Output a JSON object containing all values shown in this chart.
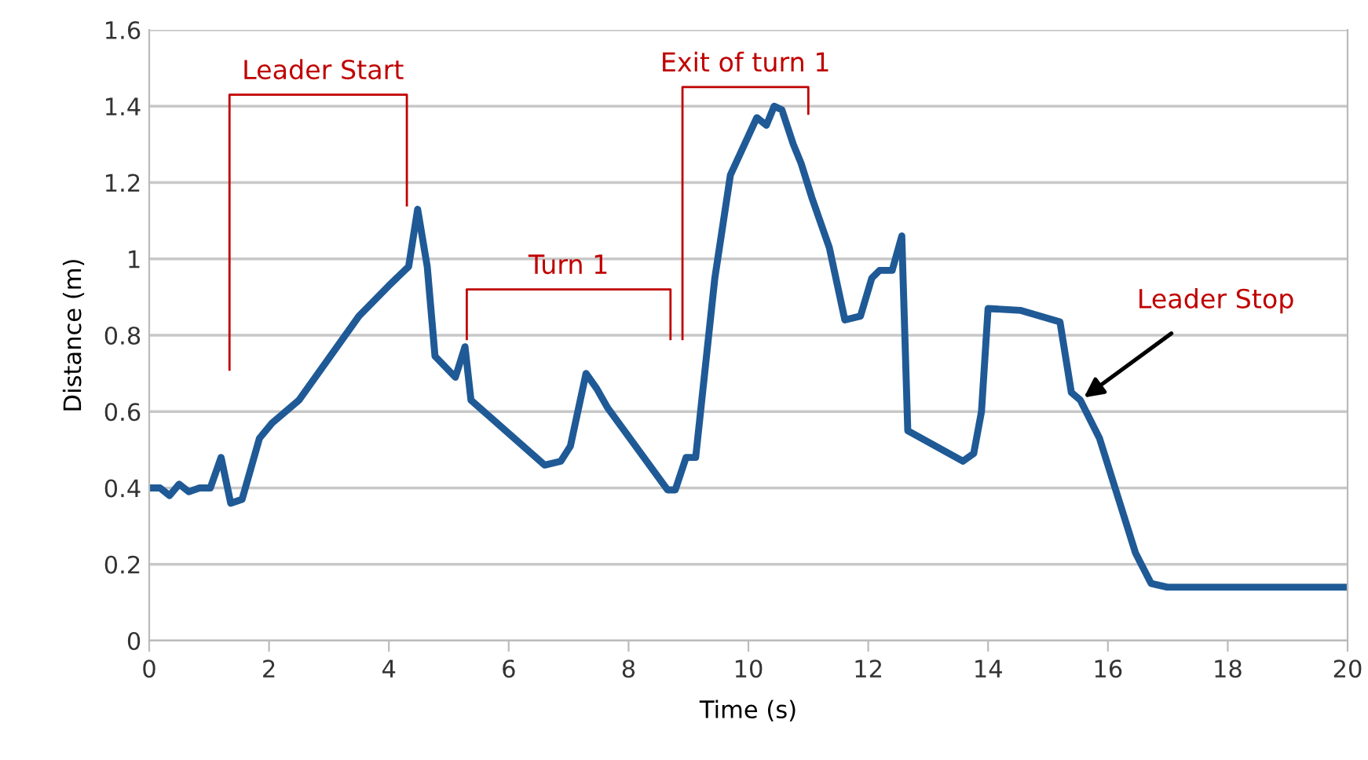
{
  "chart_data": {
    "type": "line",
    "xlabel": "Time (s)",
    "ylabel": "Distance (m)",
    "x": [
      0,
      0.18,
      0.34,
      0.5,
      0.66,
      0.84,
      1.02,
      1.2,
      1.36,
      1.55,
      1.84,
      2.05,
      2.5,
      3.0,
      3.5,
      4.0,
      4.33,
      4.48,
      4.64,
      4.77,
      5.11,
      5.27,
      5.37,
      6.6,
      6.87,
      7.03,
      7.29,
      7.47,
      7.65,
      8.65,
      8.78,
      8.96,
      9.12,
      9.44,
      9.7,
      10.14,
      10.3,
      10.43,
      10.56,
      10.75,
      10.88,
      11.06,
      11.35,
      11.61,
      11.87,
      12.06,
      12.19,
      12.4,
      12.56,
      12.66,
      13.58,
      13.76,
      13.89,
      14.0,
      14.55,
      15.2,
      15.39,
      15.54,
      15.86,
      16.12,
      16.46,
      16.72,
      16.99,
      20
    ],
    "series": [
      {
        "color": "#1f5a96",
        "values": [
          0.4,
          0.4,
          0.38,
          0.41,
          0.39,
          0.4,
          0.4,
          0.48,
          0.36,
          0.37,
          0.53,
          0.57,
          0.63,
          0.74,
          0.85,
          0.93,
          0.98,
          1.13,
          0.98,
          0.745,
          0.69,
          0.77,
          0.63,
          0.46,
          0.47,
          0.51,
          0.7,
          0.66,
          0.61,
          0.395,
          0.395,
          0.48,
          0.48,
          0.95,
          1.22,
          1.37,
          1.35,
          1.4,
          1.39,
          1.3,
          1.25,
          1.16,
          1.03,
          0.84,
          0.85,
          0.95,
          0.97,
          0.97,
          1.06,
          0.55,
          0.47,
          0.49,
          0.6,
          0.87,
          0.865,
          0.835,
          0.65,
          0.63,
          0.53,
          0.4,
          0.23,
          0.15,
          0.14,
          0.14
        ]
      }
    ],
    "xlim": [
      0,
      20
    ],
    "xticks": [
      0,
      2,
      4,
      6,
      8,
      10,
      12,
      14,
      16,
      18,
      20
    ],
    "ylim": [
      0,
      1.6
    ],
    "yticks": [
      0,
      0.2,
      0.4,
      0.6,
      0.8,
      1,
      1.2,
      1.4,
      1.6
    ],
    "grid": "y",
    "marker": "none",
    "line_style": "solid",
    "annotations": [
      "Leader Start",
      "Turn 1",
      "Exit of turn 1",
      {
        "text": "Leader Stop",
        "x": 15.54,
        "y": 0.63
      }
    ]
  }
}
